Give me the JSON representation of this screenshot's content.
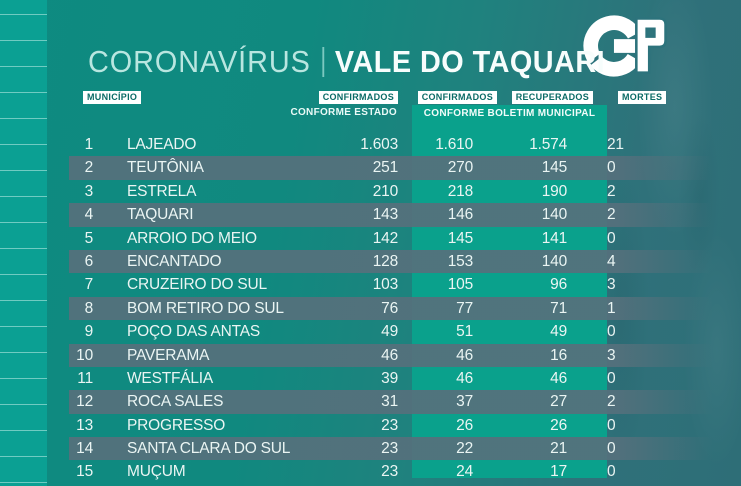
{
  "title": {
    "light": "CORONAVÍRUS",
    "separator": "|",
    "bold": "VALE DO TAQUARI"
  },
  "logo": {
    "name": "GP"
  },
  "header": {
    "municipio": "MUNICÍPIO",
    "confirmados_estado": "CONFIRMADOS",
    "conforme_estado": "CONFORME ESTADO",
    "confirmados_municipal": "CONFIRMADOS",
    "recuperados": "RECUPERADOS",
    "conforme_boletim": "CONFORME BOLETIM MUNICIPAL",
    "mortes": "MORTES"
  },
  "colors": {
    "background_teal": "#0e8b81",
    "background_right": "#2e6e77",
    "sidebar_strip": "#0ba093",
    "band_green": "#0aa18c",
    "stripe_slate": "#55707c",
    "badge_bg": "#ffffff",
    "badge_text": "#0a6b66",
    "row_text": "#eaf5f3",
    "title_light": "#b9e6e0",
    "title_bold": "#f7fdfc",
    "logo_white": "#ffffff"
  },
  "chart_data": {
    "type": "table",
    "title": "CORONAVÍRUS | VALE DO TAQUARI",
    "columns": [
      "#",
      "MUNICÍPIO",
      "CONFIRMADOS CONFORME ESTADO",
      "CONFIRMADOS CONFORME BOLETIM MUNICIPAL",
      "RECUPERADOS CONFORME BOLETIM MUNICIPAL",
      "MORTES"
    ],
    "rows": [
      {
        "rank": "1",
        "municipio": "LAJEADO",
        "confirmados_estado": "1.603",
        "confirmados_municipal": "1.610",
        "recuperados": "1.574",
        "mortes": "21"
      },
      {
        "rank": "2",
        "municipio": "TEUTÔNIA",
        "confirmados_estado": "251",
        "confirmados_municipal": "270",
        "recuperados": "145",
        "mortes": "0"
      },
      {
        "rank": "3",
        "municipio": "ESTRELA",
        "confirmados_estado": "210",
        "confirmados_municipal": "218",
        "recuperados": "190",
        "mortes": "2"
      },
      {
        "rank": "4",
        "municipio": "TAQUARI",
        "confirmados_estado": "143",
        "confirmados_municipal": "146",
        "recuperados": "140",
        "mortes": "2"
      },
      {
        "rank": "5",
        "municipio": "ARROIO DO MEIO",
        "confirmados_estado": "142",
        "confirmados_municipal": "145",
        "recuperados": "141",
        "mortes": "0"
      },
      {
        "rank": "6",
        "municipio": "ENCANTADO",
        "confirmados_estado": "128",
        "confirmados_municipal": "153",
        "recuperados": "140",
        "mortes": "4"
      },
      {
        "rank": "7",
        "municipio": "CRUZEIRO DO SUL",
        "confirmados_estado": "103",
        "confirmados_municipal": "105",
        "recuperados": "96",
        "mortes": "3"
      },
      {
        "rank": "8",
        "municipio": "BOM RETIRO DO SUL",
        "confirmados_estado": "76",
        "confirmados_municipal": "77",
        "recuperados": "71",
        "mortes": "1"
      },
      {
        "rank": "9",
        "municipio": "POÇO DAS ANTAS",
        "confirmados_estado": "49",
        "confirmados_municipal": "51",
        "recuperados": "49",
        "mortes": "0"
      },
      {
        "rank": "10",
        "municipio": "PAVERAMA",
        "confirmados_estado": "46",
        "confirmados_municipal": "46",
        "recuperados": "16",
        "mortes": "3"
      },
      {
        "rank": "11",
        "municipio": "WESTFÁLIA",
        "confirmados_estado": "39",
        "confirmados_municipal": "46",
        "recuperados": "46",
        "mortes": "0"
      },
      {
        "rank": "12",
        "municipio": "ROCA SALES",
        "confirmados_estado": "31",
        "confirmados_municipal": "37",
        "recuperados": "27",
        "mortes": "2"
      },
      {
        "rank": "13",
        "municipio": "PROGRESSO",
        "confirmados_estado": "23",
        "confirmados_municipal": "26",
        "recuperados": "26",
        "mortes": "0"
      },
      {
        "rank": "14",
        "municipio": "SANTA CLARA DO SUL",
        "confirmados_estado": "23",
        "confirmados_municipal": "22",
        "recuperados": "21",
        "mortes": "0"
      },
      {
        "rank": "15",
        "municipio": "MUÇUM",
        "confirmados_estado": "23",
        "confirmados_municipal": "24",
        "recuperados": "17",
        "mortes": "0"
      }
    ]
  }
}
